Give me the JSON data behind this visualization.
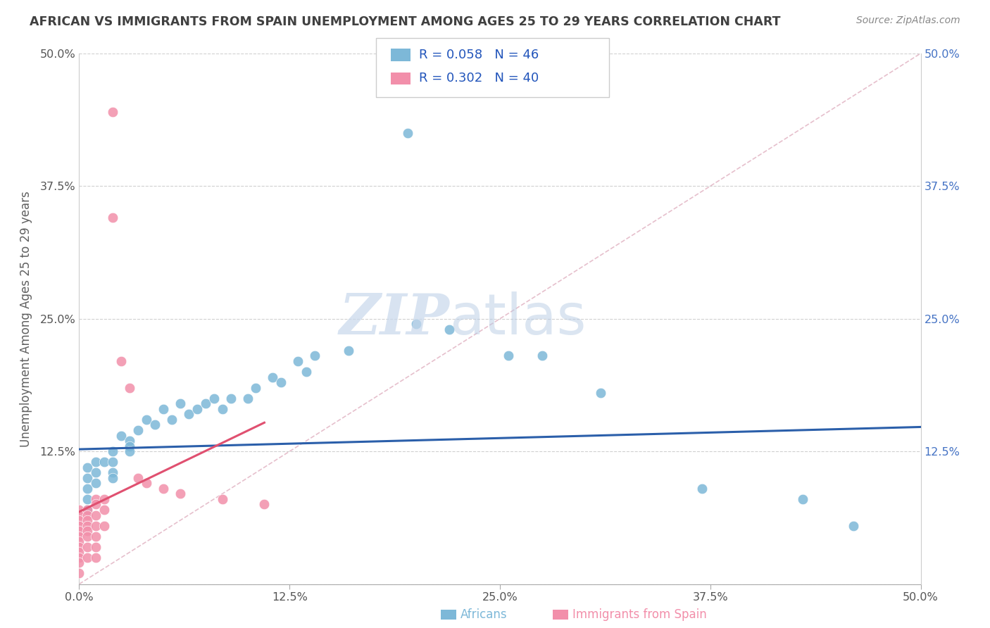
{
  "title": "AFRICAN VS IMMIGRANTS FROM SPAIN UNEMPLOYMENT AMONG AGES 25 TO 29 YEARS CORRELATION CHART",
  "source": "Source: ZipAtlas.com",
  "ylabel": "Unemployment Among Ages 25 to 29 years",
  "xlim": [
    0.0,
    0.5
  ],
  "ylim": [
    0.0,
    0.5
  ],
  "xtick_labels": [
    "0.0%",
    "12.5%",
    "25.0%",
    "37.5%",
    "50.0%"
  ],
  "xtick_vals": [
    0.0,
    0.125,
    0.25,
    0.375,
    0.5
  ],
  "ytick_labels": [
    "",
    "12.5%",
    "25.0%",
    "37.5%",
    "50.0%"
  ],
  "ytick_vals": [
    0.0,
    0.125,
    0.25,
    0.375,
    0.5
  ],
  "right_ytick_labels": [
    "50.0%",
    "37.5%",
    "25.0%",
    "12.5%",
    ""
  ],
  "legend_blue_label": "Africans",
  "legend_pink_label": "Immigrants from Spain",
  "africans_R": "R = 0.058",
  "africans_N": "N = 46",
  "spain_R": "R = 0.302",
  "spain_N": "N = 40",
  "watermark_zip": "ZIP",
  "watermark_atlas": "atlas",
  "blue_color": "#7db8d8",
  "pink_color": "#f28faa",
  "trend_blue": "#2b5faa",
  "trend_pink": "#e05070",
  "diag_color": "#e0b0c0",
  "title_color": "#404040",
  "axis_label_color": "#606060",
  "right_tick_color": "#4472c4",
  "grid_color": "#d0d0d0",
  "africans_x": [
    0.195,
    0.005,
    0.005,
    0.005,
    0.005,
    0.005,
    0.01,
    0.01,
    0.01,
    0.015,
    0.02,
    0.02,
    0.02,
    0.02,
    0.025,
    0.03,
    0.03,
    0.03,
    0.035,
    0.04,
    0.045,
    0.05,
    0.055,
    0.06,
    0.065,
    0.07,
    0.075,
    0.08,
    0.085,
    0.09,
    0.1,
    0.105,
    0.115,
    0.12,
    0.13,
    0.135,
    0.14,
    0.16,
    0.2,
    0.22,
    0.255,
    0.275,
    0.31,
    0.37,
    0.43,
    0.46
  ],
  "africans_y": [
    0.425,
    0.11,
    0.1,
    0.09,
    0.08,
    0.07,
    0.115,
    0.105,
    0.095,
    0.115,
    0.125,
    0.115,
    0.105,
    0.1,
    0.14,
    0.135,
    0.13,
    0.125,
    0.145,
    0.155,
    0.15,
    0.165,
    0.155,
    0.17,
    0.16,
    0.165,
    0.17,
    0.175,
    0.165,
    0.175,
    0.175,
    0.185,
    0.195,
    0.19,
    0.21,
    0.2,
    0.215,
    0.22,
    0.245,
    0.24,
    0.215,
    0.215,
    0.18,
    0.09,
    0.08,
    0.055
  ],
  "spain_x": [
    0.0,
    0.0,
    0.0,
    0.0,
    0.0,
    0.0,
    0.0,
    0.0,
    0.0,
    0.0,
    0.0,
    0.0,
    0.005,
    0.005,
    0.005,
    0.005,
    0.005,
    0.005,
    0.005,
    0.005,
    0.01,
    0.01,
    0.01,
    0.01,
    0.01,
    0.01,
    0.01,
    0.015,
    0.015,
    0.015,
    0.02,
    0.02,
    0.025,
    0.03,
    0.035,
    0.04,
    0.05,
    0.06,
    0.085,
    0.11
  ],
  "spain_y": [
    0.07,
    0.065,
    0.06,
    0.055,
    0.05,
    0.045,
    0.04,
    0.035,
    0.03,
    0.025,
    0.02,
    0.01,
    0.07,
    0.065,
    0.06,
    0.055,
    0.05,
    0.045,
    0.035,
    0.025,
    0.08,
    0.075,
    0.065,
    0.055,
    0.045,
    0.035,
    0.025,
    0.08,
    0.07,
    0.055,
    0.445,
    0.345,
    0.21,
    0.185,
    0.1,
    0.095,
    0.09,
    0.085,
    0.08,
    0.075
  ]
}
